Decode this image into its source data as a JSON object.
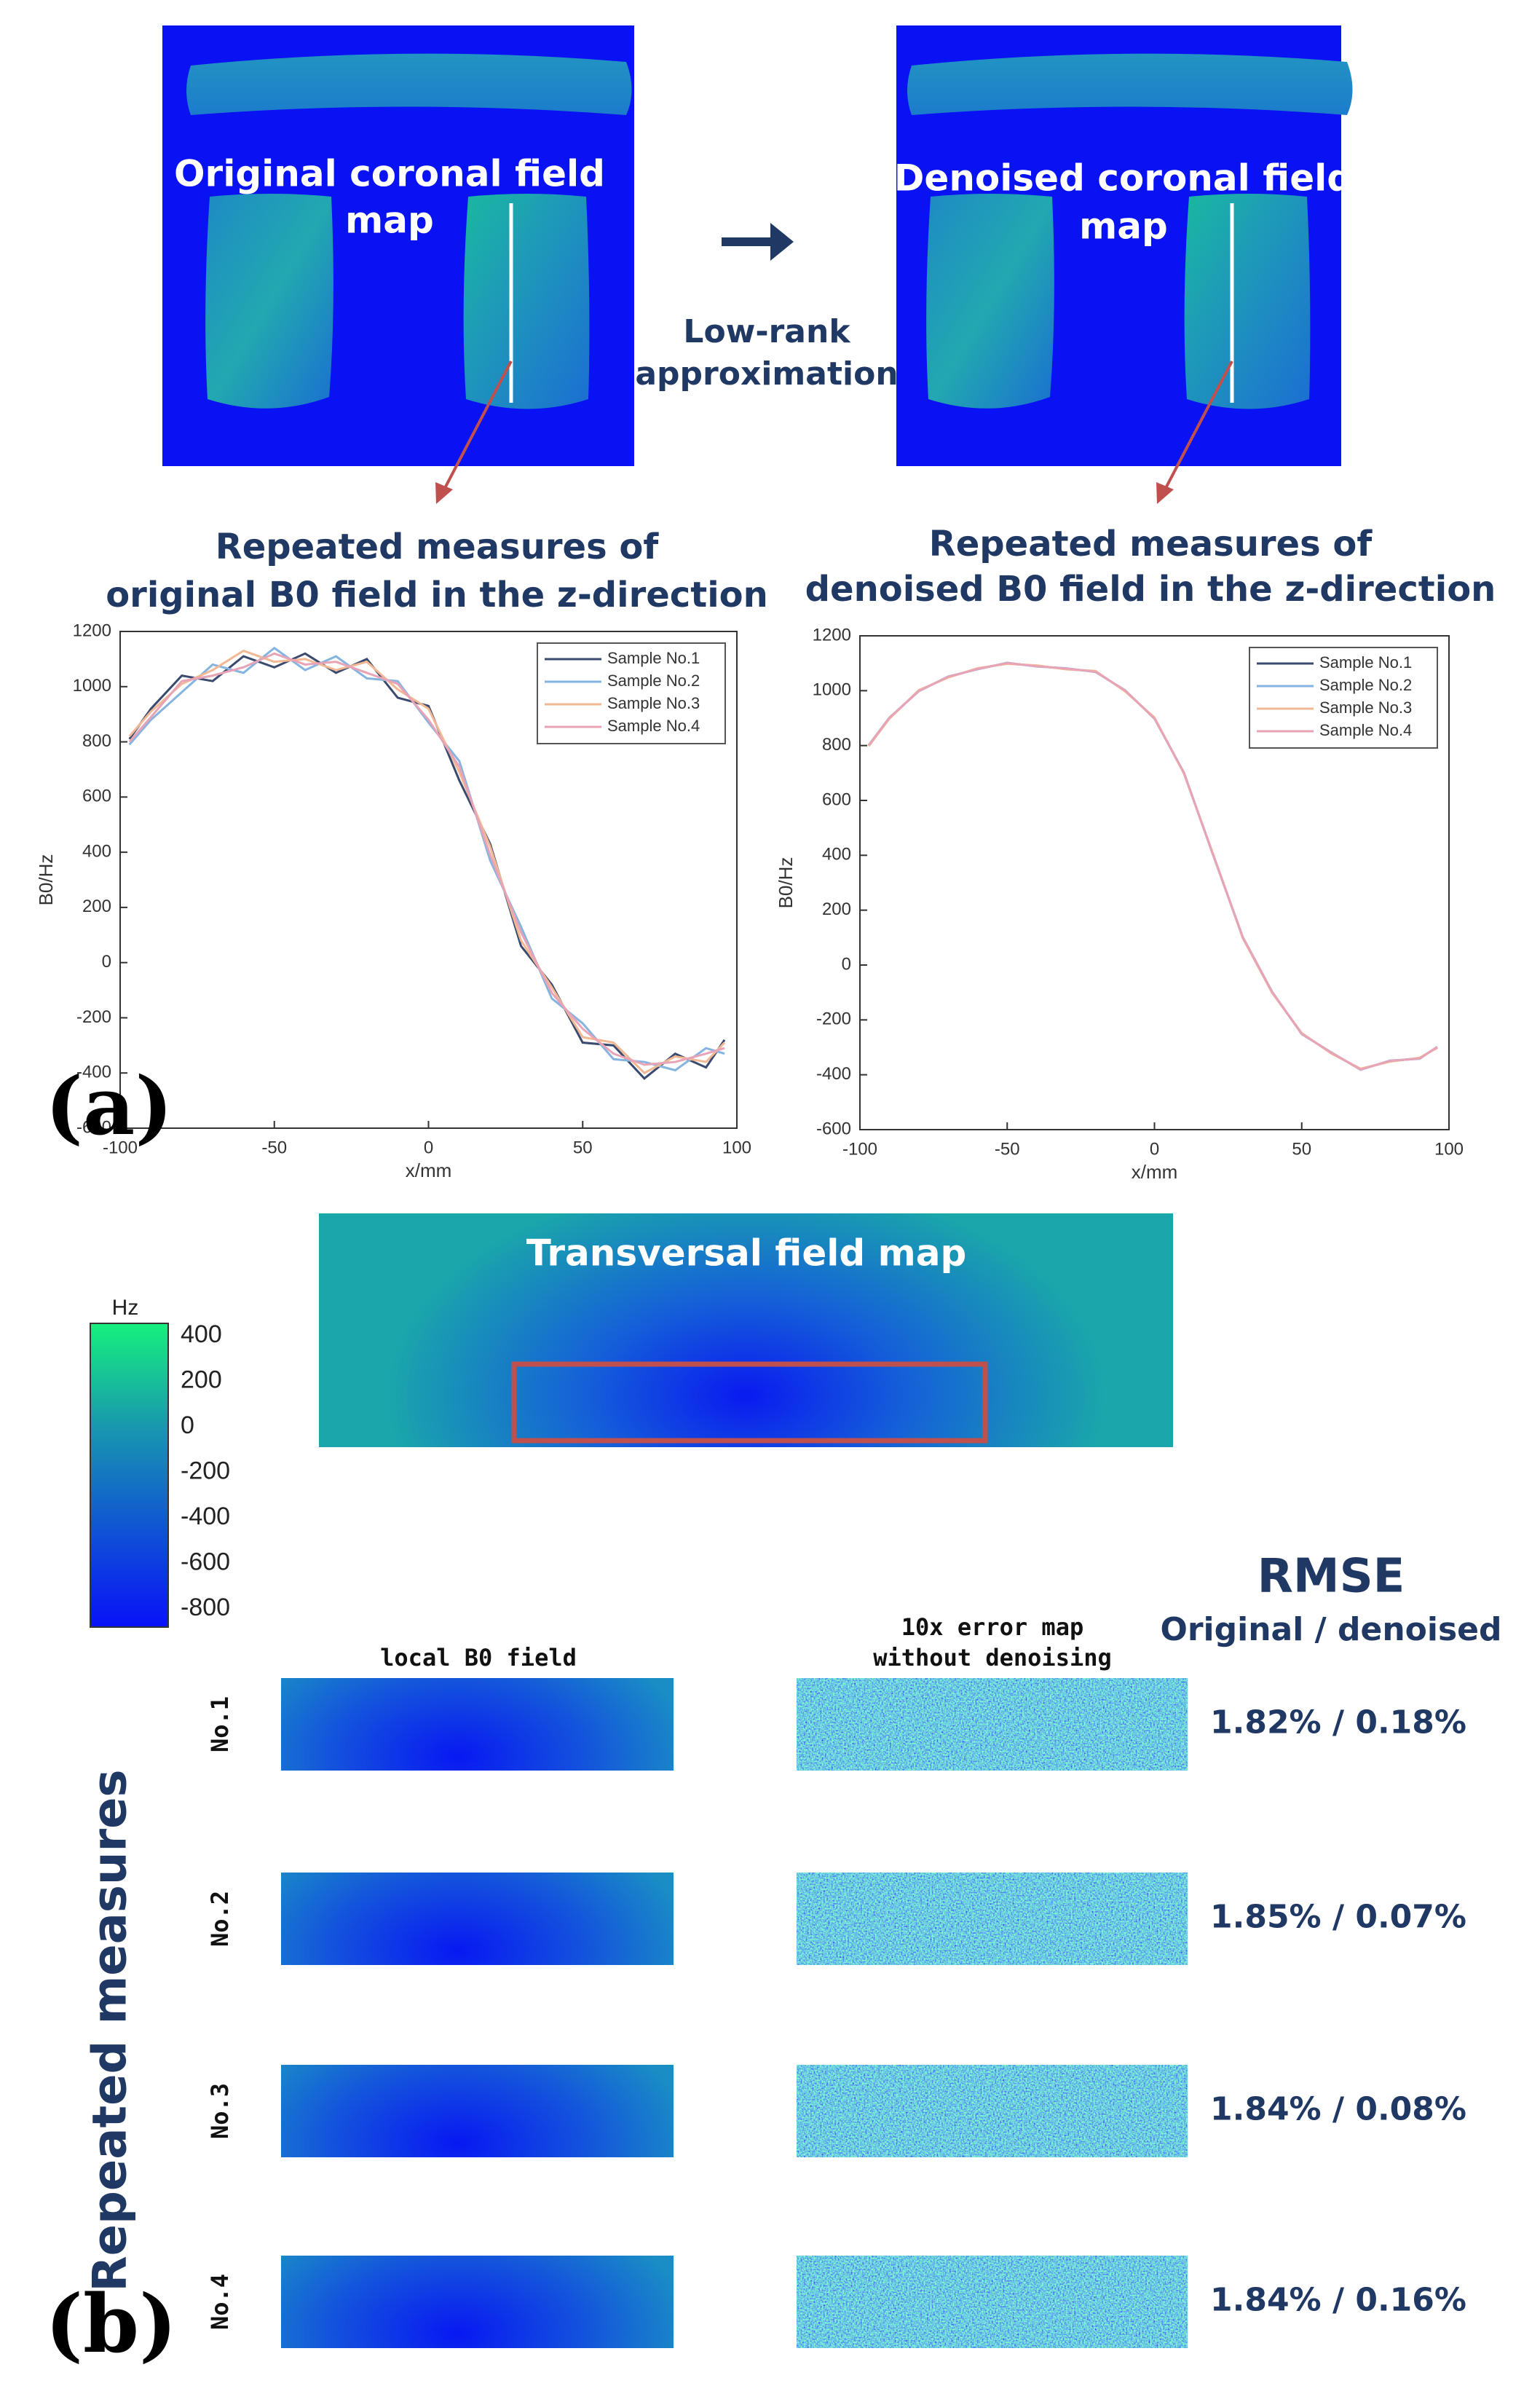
{
  "panel_a": {
    "label": "(a)",
    "original_map_title": [
      "Original coronal field",
      "map"
    ],
    "denoised_map_title": [
      "Denoised coronal field",
      "map"
    ],
    "method": [
      "Low-rank",
      "approximation"
    ]
  },
  "chart_data": [
    {
      "type": "line",
      "title": [
        "Repeated measures of",
        "original B0 field in the z-direction"
      ],
      "xlabel": "x/mm",
      "ylabel": "B0/Hz",
      "x": [
        -97,
        -90,
        -80,
        -70,
        -60,
        -50,
        -40,
        -30,
        -20,
        -10,
        0,
        10,
        20,
        30,
        40,
        50,
        60,
        70,
        80,
        90,
        96
      ],
      "xlim": [
        -100,
        100
      ],
      "xticks": [
        -100,
        -50,
        0,
        50,
        100
      ],
      "ylim": [
        -600,
        1200
      ],
      "yticks": [
        -600,
        -400,
        -200,
        0,
        200,
        400,
        600,
        800,
        1000,
        1200
      ],
      "legend": "upper right",
      "series": [
        {
          "name": "Sample No.1",
          "color": "#3a4a6e",
          "values": [
            810,
            920,
            1040,
            1020,
            1110,
            1070,
            1120,
            1050,
            1100,
            960,
            930,
            660,
            430,
            60,
            -80,
            -290,
            -300,
            -420,
            -330,
            -380,
            -280
          ]
        },
        {
          "name": "Sample No.2",
          "color": "#86b4e0",
          "values": [
            790,
            880,
            980,
            1080,
            1050,
            1140,
            1060,
            1110,
            1030,
            1020,
            870,
            730,
            370,
            130,
            -130,
            -220,
            -350,
            -360,
            -390,
            -310,
            -330
          ]
        },
        {
          "name": "Sample No.3",
          "color": "#f2b894",
          "values": [
            820,
            910,
            1010,
            1060,
            1130,
            1090,
            1100,
            1060,
            1090,
            990,
            920,
            690,
            420,
            80,
            -90,
            -270,
            -290,
            -400,
            -340,
            -360,
            -290
          ]
        },
        {
          "name": "Sample No.4",
          "color": "#e8a3b6",
          "values": [
            800,
            890,
            1020,
            1040,
            1070,
            1120,
            1080,
            1090,
            1050,
            1010,
            880,
            710,
            390,
            110,
            -110,
            -240,
            -330,
            -370,
            -360,
            -330,
            -310
          ]
        }
      ]
    },
    {
      "type": "line",
      "title": [
        "Repeated measures of",
        "denoised B0 field in the z-direction"
      ],
      "xlabel": "x/mm",
      "ylabel": "B0/Hz",
      "x": [
        -97,
        -90,
        -80,
        -70,
        -60,
        -50,
        -40,
        -30,
        -20,
        -10,
        0,
        10,
        20,
        30,
        40,
        50,
        60,
        70,
        80,
        90,
        96
      ],
      "xlim": [
        -100,
        100
      ],
      "xticks": [
        -100,
        -50,
        0,
        50,
        100
      ],
      "ylim": [
        -600,
        1200
      ],
      "yticks": [
        -600,
        -400,
        -200,
        0,
        200,
        400,
        600,
        800,
        1000,
        1200
      ],
      "legend": "upper right",
      "series": [
        {
          "name": "Sample No.1",
          "color": "#3a4a6e",
          "values": [
            800,
            900,
            1000,
            1050,
            1080,
            1100,
            1090,
            1080,
            1070,
            1000,
            900,
            700,
            400,
            100,
            -100,
            -250,
            -320,
            -380,
            -350,
            -340,
            -300
          ]
        },
        {
          "name": "Sample No.2",
          "color": "#86b4e0",
          "values": [
            802,
            902,
            998,
            1052,
            1078,
            1102,
            1088,
            1082,
            1068,
            1002,
            898,
            702,
            398,
            102,
            -98,
            -252,
            -318,
            -382,
            -348,
            -342,
            -298
          ]
        },
        {
          "name": "Sample No.3",
          "color": "#f2b894",
          "values": [
            798,
            898,
            1002,
            1048,
            1082,
            1098,
            1092,
            1078,
            1072,
            998,
            902,
            698,
            402,
            98,
            -102,
            -248,
            -322,
            -378,
            -352,
            -338,
            -302
          ]
        },
        {
          "name": "Sample No.4",
          "color": "#e8a3b6",
          "values": [
            801,
            901,
            999,
            1051,
            1079,
            1101,
            1089,
            1081,
            1069,
            1001,
            899,
            701,
            399,
            101,
            -99,
            -251,
            -319,
            -381,
            -349,
            -341,
            -299
          ]
        }
      ]
    }
  ],
  "panel_b": {
    "label": "(b)",
    "transversal_title": "Transversal field map",
    "colorbar": {
      "unit": "Hz",
      "clim": [
        -880,
        455
      ],
      "ticks": [
        400,
        200,
        0,
        -200,
        -400,
        -600,
        -800
      ]
    },
    "rmse_title": "RMSE",
    "rmse_subtitle": "Original / denoised",
    "local_header": "local B0 field",
    "error_header": [
      "10x error map",
      "without denoising"
    ],
    "row_axis": "Repeated measures",
    "rows": [
      {
        "label": "No.1",
        "rmse": "1.82% / 0.18%"
      },
      {
        "label": "No.2",
        "rmse": "1.85% / 0.07%"
      },
      {
        "label": "No.3",
        "rmse": "1.84% / 0.08%"
      },
      {
        "label": "No.4",
        "rmse": "1.84% / 0.16%"
      }
    ]
  }
}
